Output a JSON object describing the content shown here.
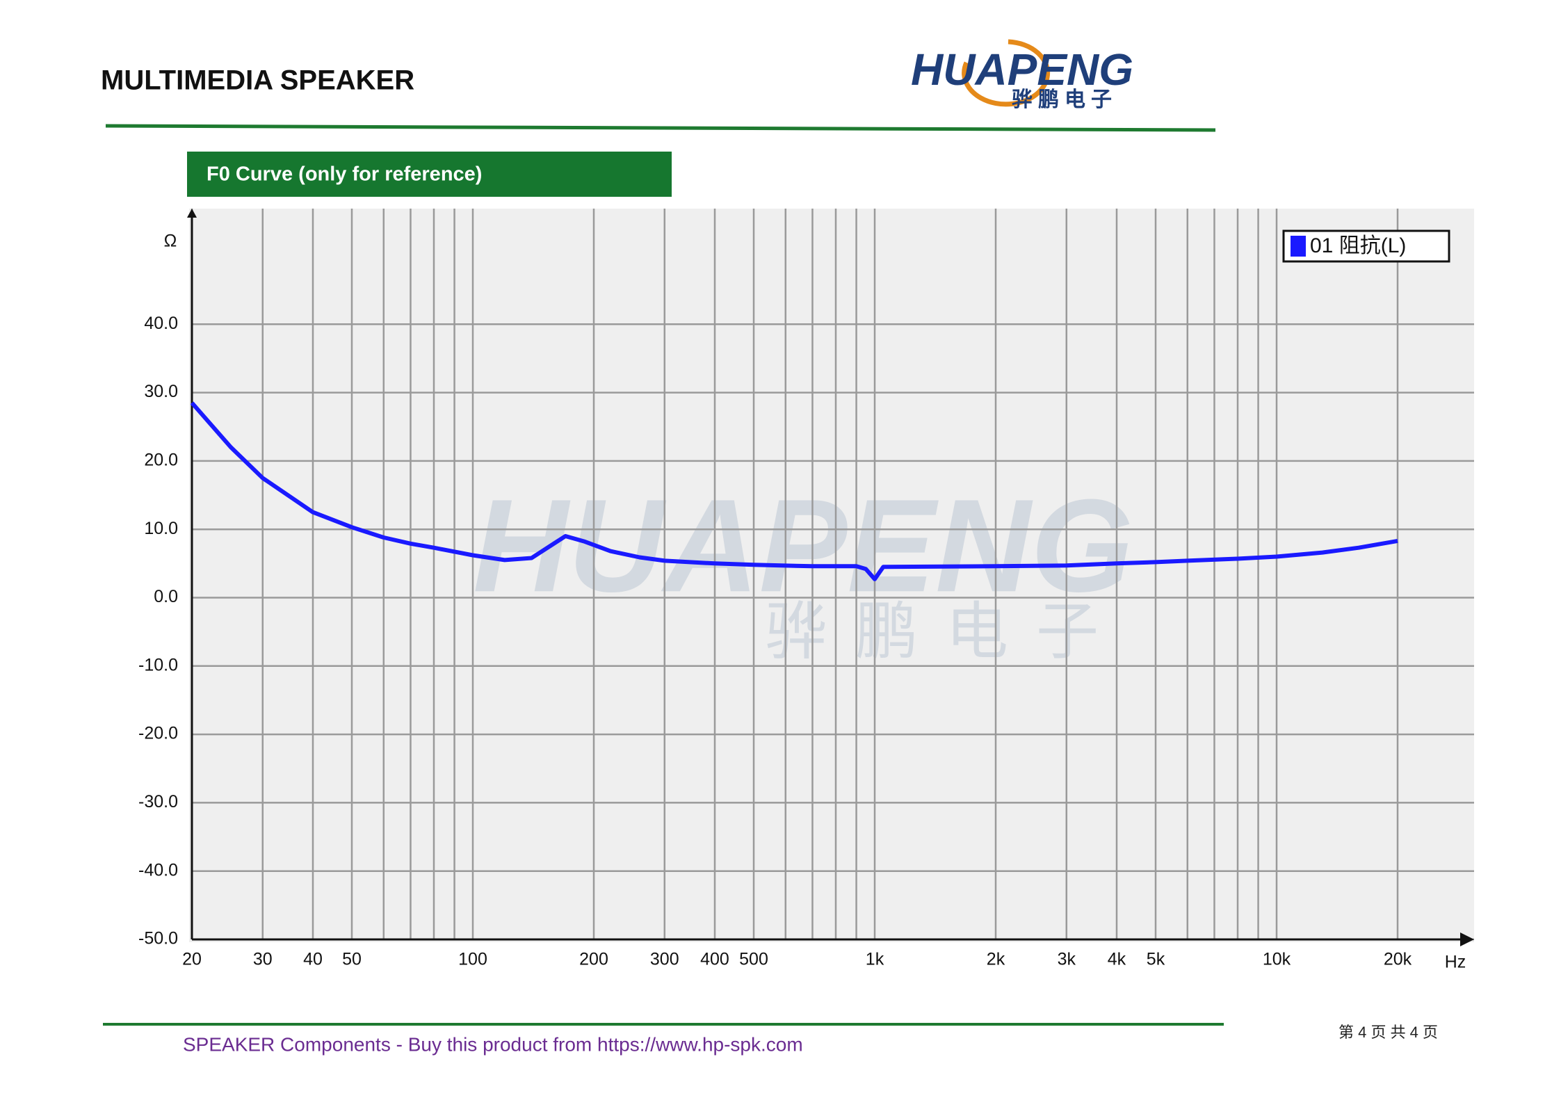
{
  "header": {
    "title": "MULTIMEDIA SPEAKER",
    "logo": "HUAPENG",
    "logo_cn": "骅鹏电子"
  },
  "section_title": "F0 Curve (only for reference)",
  "chart_data": {
    "type": "line",
    "y_unit": "Ω",
    "x_unit": "Hz",
    "log_x": true,
    "grid": true,
    "legend": "top-right",
    "x": [
      20,
      25,
      30,
      40,
      50,
      60,
      70,
      80,
      100,
      120,
      140,
      160,
      170,
      190,
      220,
      260,
      300,
      400,
      500,
      700,
      900,
      950,
      1000,
      1050,
      2000,
      3000,
      4000,
      5000,
      6000,
      8000,
      10000,
      13000,
      16000,
      20000
    ],
    "series": [
      {
        "name": "01 阻抗(L)",
        "color": "#1a1aff",
        "values": [
          28.5,
          22,
          17.5,
          12.5,
          10.3,
          8.8,
          7.9,
          7.3,
          6.2,
          5.5,
          5.8,
          8,
          9,
          8.2,
          6.8,
          5.9,
          5.4,
          5.0,
          4.8,
          4.6,
          4.6,
          4.2,
          2.7,
          4.5,
          4.6,
          4.7,
          5.0,
          5.2,
          5.4,
          5.7,
          6,
          6.6,
          7.3,
          8.3
        ]
      }
    ],
    "xlim": [
      20,
      20000
    ],
    "ylim": [
      -50,
      56
    ],
    "xticks": [
      20,
      30,
      40,
      50,
      100,
      200,
      300,
      400,
      500,
      {
        "value": 1000,
        "label": "1k"
      },
      {
        "value": 2000,
        "label": "2k"
      },
      {
        "value": 3000,
        "label": "3k"
      },
      {
        "value": 4000,
        "label": "4k"
      },
      {
        "value": 5000,
        "label": "5k"
      },
      {
        "value": 10000,
        "label": "10k"
      },
      {
        "value": 20000,
        "label": "20k"
      }
    ],
    "xminorticks": [
      60,
      70,
      80,
      90,
      600,
      700,
      800,
      900,
      6000,
      7000,
      8000,
      9000
    ],
    "yticks": [
      {
        "value": 40,
        "label": "40.0"
      },
      {
        "value": 30,
        "label": "30.0"
      },
      {
        "value": 20,
        "label": "20.0"
      },
      {
        "value": 10,
        "label": "10.0"
      },
      {
        "value": 0,
        "label": "0.0"
      },
      {
        "value": -10,
        "label": "-10.0"
      },
      {
        "value": -20,
        "label": "-20.0"
      },
      {
        "value": -30,
        "label": "-30.0"
      },
      {
        "value": -40,
        "label": "-40.0"
      },
      {
        "value": -50,
        "label": "-50.0"
      }
    ]
  },
  "footer": {
    "text": "SPEAKER Components - Buy this product from  https://www.hp-spk.com",
    "page": "第 4 页 共 4 页"
  }
}
